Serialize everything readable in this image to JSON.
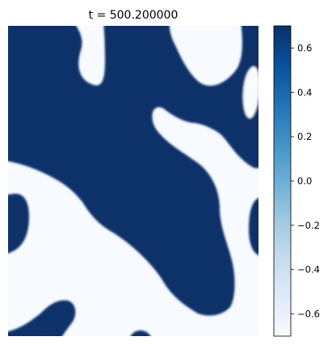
{
  "chart_data": {
    "type": "heatmap",
    "title": "t = 500.200000",
    "colormap": "Blues",
    "colors": {
      "low": "#f7fbff",
      "mid": "#6aaed6",
      "high": "#08306b"
    },
    "vmin": -0.7,
    "vmax": 0.7,
    "field_levels": {
      "light_phase": -0.7,
      "dark_phase": 0.7
    },
    "colorbar": {
      "ticks": [
        0.6,
        0.4,
        0.2,
        0.0,
        -0.2,
        -0.4,
        -0.6
      ],
      "tick_labels": [
        "0.6",
        "0.4",
        "0.2",
        "0.0",
        "−0.2",
        "−0.4",
        "−0.6"
      ]
    },
    "axes": "off"
  }
}
